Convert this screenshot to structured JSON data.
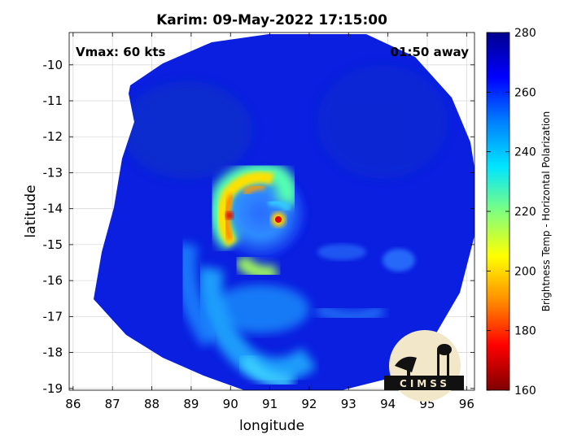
{
  "chart_data": {
    "type": "heatmap",
    "title": "Karim: 09-May-2022 17:15:00",
    "xlabel": "longitude",
    "ylabel": "latitude",
    "xlim": [
      85.9,
      96.2
    ],
    "ylim": [
      -19.05,
      -9.1
    ],
    "x_ticks": [
      86,
      87,
      88,
      89,
      90,
      91,
      92,
      93,
      94,
      95,
      96
    ],
    "y_ticks": [
      -10,
      -11,
      -12,
      -13,
      -14,
      -15,
      -16,
      -17,
      -18,
      -19
    ],
    "grid": true,
    "annotations": {
      "vmax": "Vmax: 60 kts",
      "time_away": "01:50 away"
    },
    "colorbar": {
      "label": "Brightness Temp - Horizontal Polarization",
      "min": 160,
      "max": 280,
      "ticks": [
        160,
        180,
        200,
        220,
        240,
        260,
        280
      ],
      "colors": [
        "#7f0000",
        "#ff0000",
        "#ff8c00",
        "#ffff00",
        "#7fff7f",
        "#00e5ff",
        "#0080ff",
        "#0000ff",
        "#00008f"
      ]
    },
    "storm_center": {
      "lon": 91.2,
      "lat": -14.3
    },
    "swath_background_value": 265,
    "logo": "CIMSS"
  }
}
